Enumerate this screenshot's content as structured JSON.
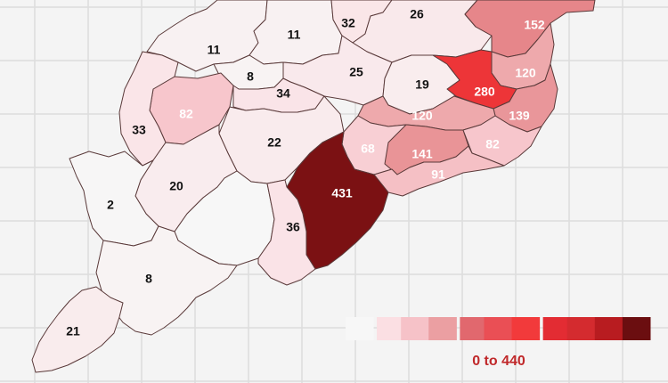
{
  "map": {
    "districts": [
      {
        "id": "d-11a",
        "value": 11
      },
      {
        "id": "d-11b",
        "value": 11
      },
      {
        "id": "d-32",
        "value": 32
      },
      {
        "id": "d-26",
        "value": 26
      },
      {
        "id": "d-152",
        "value": 152
      },
      {
        "id": "d-8a",
        "value": 8
      },
      {
        "id": "d-25",
        "value": 25
      },
      {
        "id": "d-19",
        "value": 19
      },
      {
        "id": "d-120a",
        "value": 120
      },
      {
        "id": "d-280",
        "value": 280
      },
      {
        "id": "d-82a",
        "value": 82
      },
      {
        "id": "d-34",
        "value": 34
      },
      {
        "id": "d-139",
        "value": 139
      },
      {
        "id": "d-120b",
        "value": 120
      },
      {
        "id": "d-33",
        "value": 33
      },
      {
        "id": "d-22",
        "value": 22
      },
      {
        "id": "d-68",
        "value": 68
      },
      {
        "id": "d-141",
        "value": 141
      },
      {
        "id": "d-82b",
        "value": 82
      },
      {
        "id": "d-91",
        "value": 91
      },
      {
        "id": "d-20",
        "value": 20
      },
      {
        "id": "d-431",
        "value": 431
      },
      {
        "id": "d-2",
        "value": 2
      },
      {
        "id": "d-0",
        "value": null
      },
      {
        "id": "d-36",
        "value": 36
      },
      {
        "id": "d-8b",
        "value": 8
      },
      {
        "id": "d-21",
        "value": 21
      }
    ]
  },
  "legend": {
    "range_label": "0 to 440",
    "min": 0,
    "max": 440,
    "colors": [
      "#f7f7f7",
      "#fbdfe3",
      "#f6c2c8",
      "#eb9fa2",
      "#e1686e",
      "#ea4f55",
      "#f23a3b",
      "#e32c33",
      "#d42b2f",
      "#b81c20",
      "#6b0e10"
    ]
  },
  "colors": {
    "no_data": "#f7f7f7",
    "border": "#5a3a3a",
    "label_dark": "#111111",
    "label_light": "#ffffff"
  }
}
